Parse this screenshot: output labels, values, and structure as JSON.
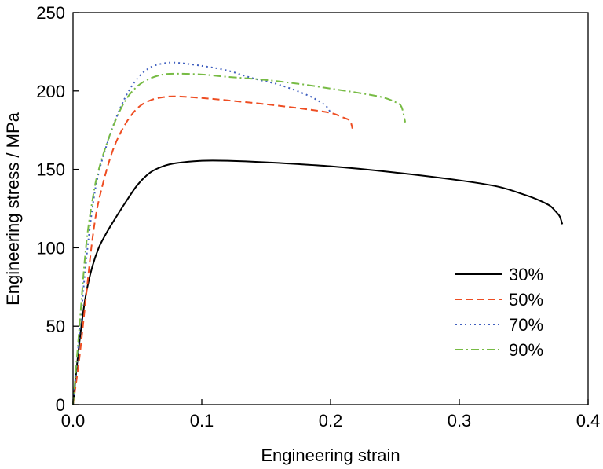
{
  "chart_data": {
    "type": "line",
    "title": "",
    "xlabel": "Engineering strain",
    "ylabel": "Engineering stress / MPa",
    "xlim": [
      0,
      0.4
    ],
    "ylim": [
      0,
      250
    ],
    "xticks": [
      0,
      0.1,
      0.2,
      0.3,
      0.4
    ],
    "xtick_labels": [
      "0.0",
      "0.1",
      "0.2",
      "0.3",
      "0.4"
    ],
    "yticks": [
      0,
      50,
      100,
      150,
      200,
      250
    ],
    "ytick_labels": [
      "0",
      "50",
      "100",
      "150",
      "200",
      "250"
    ],
    "grid": false,
    "legend_position": "lower-right",
    "series": [
      {
        "name": "30%",
        "color": "#000000",
        "dash": "solid",
        "x": [
          0,
          0.005,
          0.01,
          0.015,
          0.02,
          0.025,
          0.03,
          0.04,
          0.05,
          0.06,
          0.07,
          0.08,
          0.1,
          0.12,
          0.15,
          0.2,
          0.25,
          0.3,
          0.33,
          0.35,
          0.36,
          0.37,
          0.375,
          0.378,
          0.38
        ],
        "y": [
          0,
          40,
          70,
          88,
          100,
          108,
          115,
          128,
          140,
          148,
          152,
          154,
          155.5,
          155.5,
          154.5,
          152,
          148,
          143,
          139,
          134,
          131,
          127,
          123,
          120,
          115
        ]
      },
      {
        "name": "50%",
        "color": "#ee4d22",
        "dash": "dashed",
        "x": [
          0,
          0.005,
          0.01,
          0.015,
          0.02,
          0.03,
          0.04,
          0.05,
          0.06,
          0.07,
          0.08,
          0.1,
          0.12,
          0.15,
          0.18,
          0.2,
          0.21,
          0.215,
          0.217
        ],
        "y": [
          0,
          30,
          68,
          105,
          130,
          160,
          178,
          189,
          194,
          196,
          196.5,
          195.5,
          194,
          191.5,
          188.5,
          186,
          183,
          181,
          176
        ]
      },
      {
        "name": "70%",
        "color": "#3f5fbf",
        "dash": "dotted",
        "x": [
          0,
          0.005,
          0.01,
          0.015,
          0.02,
          0.03,
          0.04,
          0.05,
          0.06,
          0.07,
          0.08,
          0.1,
          0.12,
          0.14,
          0.16,
          0.18,
          0.19,
          0.197,
          0.2
        ],
        "y": [
          0,
          45,
          90,
          125,
          148,
          175,
          195,
          208,
          215,
          217.5,
          218,
          216,
          213,
          208,
          204,
          198,
          194,
          190,
          186
        ]
      },
      {
        "name": "90%",
        "color": "#77bb44",
        "dash": "dashdot",
        "x": [
          0,
          0.005,
          0.01,
          0.015,
          0.02,
          0.03,
          0.04,
          0.05,
          0.06,
          0.07,
          0.08,
          0.1,
          0.12,
          0.15,
          0.18,
          0.2,
          0.22,
          0.24,
          0.25,
          0.255,
          0.258
        ],
        "y": [
          0,
          50,
          100,
          130,
          150,
          175,
          193,
          203,
          208,
          210.5,
          211,
          210.5,
          209,
          207,
          204,
          201.5,
          199,
          196,
          193,
          190,
          180
        ]
      }
    ]
  }
}
